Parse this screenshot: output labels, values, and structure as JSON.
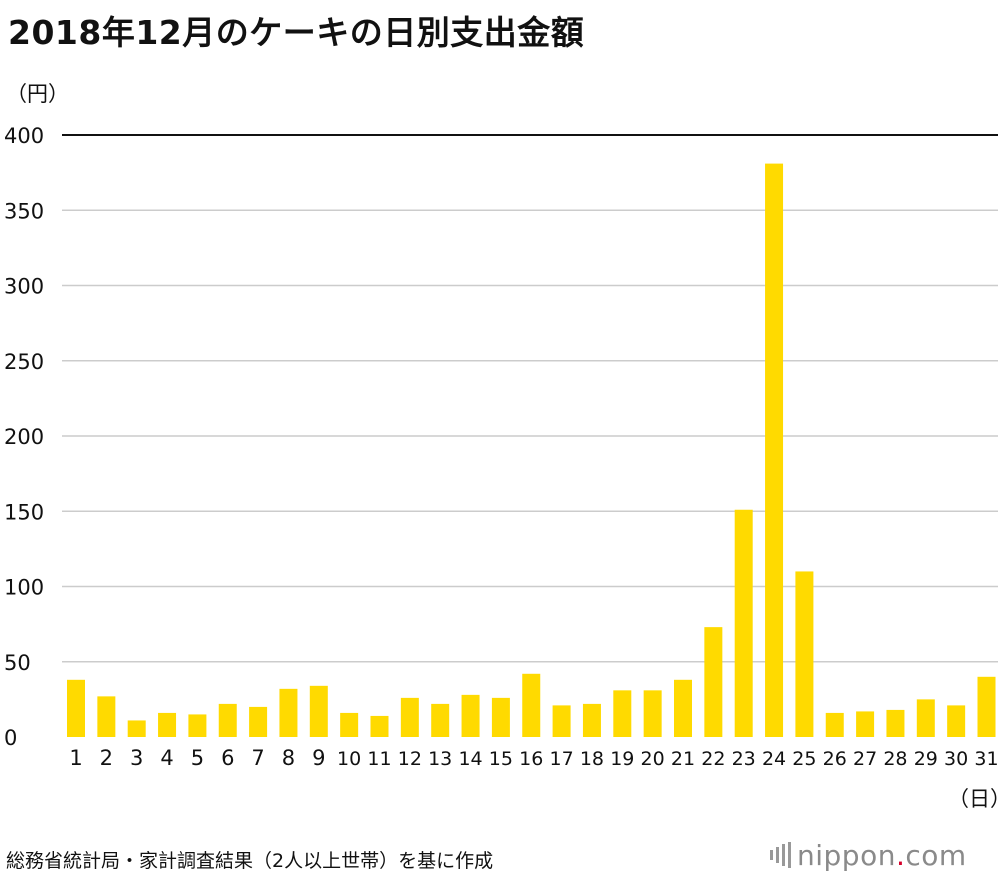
{
  "title": "2018年12月のケーキの日別支出金額",
  "colors": {
    "bar": "#FFDA00",
    "grid": "#cccccc",
    "axis_top": "#111111",
    "text": "#111111"
  },
  "chart_data": {
    "type": "bar",
    "title": "2018年12月のケーキの日別支出金額",
    "ylabel": "（円）",
    "xlabel": "（日）",
    "ylim": [
      0,
      400
    ],
    "yticks": [
      0,
      50,
      100,
      150,
      200,
      250,
      300,
      350,
      400
    ],
    "grid": true,
    "categories": [
      "1",
      "2",
      "3",
      "4",
      "5",
      "6",
      "7",
      "8",
      "9",
      "10",
      "11",
      "12",
      "13",
      "14",
      "15",
      "16",
      "17",
      "18",
      "19",
      "20",
      "21",
      "22",
      "23",
      "24",
      "25",
      "26",
      "27",
      "28",
      "29",
      "30",
      "31"
    ],
    "values": [
      38,
      27,
      11,
      16,
      15,
      22,
      20,
      32,
      34,
      16,
      14,
      26,
      22,
      28,
      26,
      42,
      21,
      22,
      31,
      31,
      38,
      73,
      151,
      381,
      110,
      16,
      17,
      18,
      25,
      21,
      40
    ]
  },
  "source": "総務省統計局・家計調査結果（2人以上世帯）を基に作成",
  "logo": {
    "name": "nippon",
    "dot": ".",
    "suffix": "com"
  }
}
